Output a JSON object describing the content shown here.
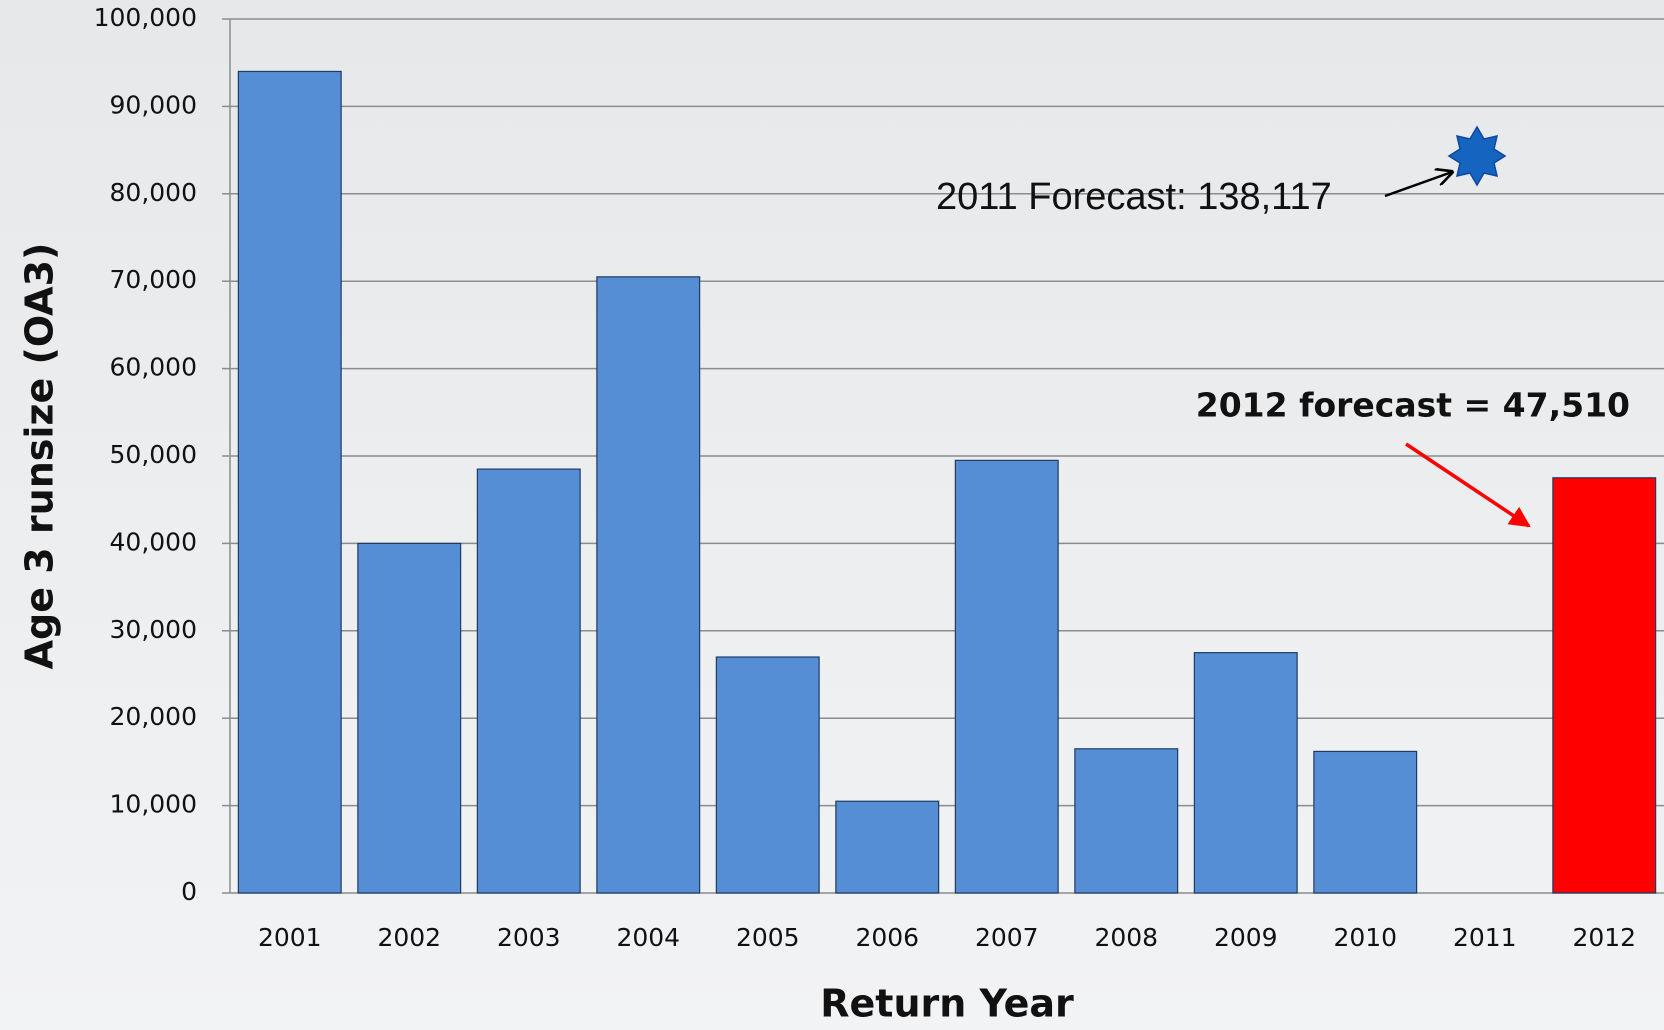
{
  "chart_data": {
    "type": "bar",
    "y_label": "Age 3 runsize (OA3)",
    "x_label": "Return Year",
    "categories": [
      "2001",
      "2002",
      "2003",
      "2004",
      "2005",
      "2006",
      "2007",
      "2008",
      "2009",
      "2010",
      "2011",
      "2012"
    ],
    "values": [
      94000,
      40000,
      48500,
      70500,
      27000,
      10500,
      49500,
      16500,
      27500,
      16200,
      null,
      47510
    ],
    "colors": [
      "#558ed5",
      "#558ed5",
      "#558ed5",
      "#558ed5",
      "#558ed5",
      "#558ed5",
      "#558ed5",
      "#558ed5",
      "#558ed5",
      "#558ed5",
      "#558ed5",
      "#ff0000"
    ],
    "ylim": [
      0,
      100000
    ],
    "yticks": [
      {
        "value": 0,
        "label": "0"
      },
      {
        "value": 10000,
        "label": "10,000"
      },
      {
        "value": 20000,
        "label": "20,000"
      },
      {
        "value": 30000,
        "label": "30,000"
      },
      {
        "value": 40000,
        "label": "40,000"
      },
      {
        "value": 50000,
        "label": "50,000"
      },
      {
        "value": 60000,
        "label": "60,000"
      },
      {
        "value": 70000,
        "label": "70,000"
      },
      {
        "value": 80000,
        "label": "80,000"
      },
      {
        "value": 90000,
        "label": "90,000"
      },
      {
        "value": 100000,
        "label": "100,000"
      }
    ],
    "grid": true,
    "annotations": [
      "2011 Forecast: 138,117",
      "2012 forecast = 47,510"
    ]
  }
}
